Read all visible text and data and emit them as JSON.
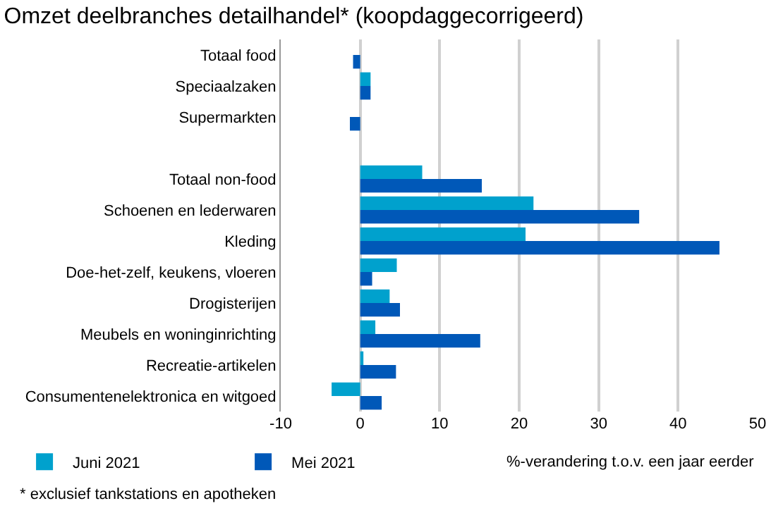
{
  "chart_data": {
    "type": "bar",
    "orientation": "horizontal",
    "title": "Omzet deelbranches detailhandel* (koopdaggecorrigeerd)",
    "xlabel": "%-verandering t.o.v. een jaar eerder",
    "categories": [
      "Totaal food",
      "Speciaalzaken",
      "Supermarkten",
      null,
      "Totaal non-food",
      "Schoenen en lederwaren",
      "Kleding",
      "Doe-het-zelf, keukens, vloeren",
      "Drogisterijen",
      "Meubels en woninginrichting",
      "Recreatie-artikelen",
      "Consumentenelektronica en witgoed"
    ],
    "series": [
      {
        "name": "Juni 2021",
        "color": "#00a1cd",
        "values": [
          0,
          1.3,
          0,
          null,
          7.8,
          21.8,
          20.8,
          4.6,
          3.7,
          1.9,
          0.4,
          -3.6
        ]
      },
      {
        "name": "Mei 2021",
        "color": "#0058b8",
        "values": [
          -0.9,
          1.3,
          -1.3,
          null,
          15.3,
          35.1,
          45.2,
          1.5,
          5.0,
          15.1,
          4.5,
          2.7
        ]
      }
    ],
    "xlim": [
      -10,
      50
    ],
    "xticks": [
      -10,
      0,
      10,
      20,
      30,
      40,
      50
    ],
    "grid": "x",
    "legend": "bottom left",
    "annotations": [
      "* exclusief tankstations en apotheken"
    ]
  }
}
